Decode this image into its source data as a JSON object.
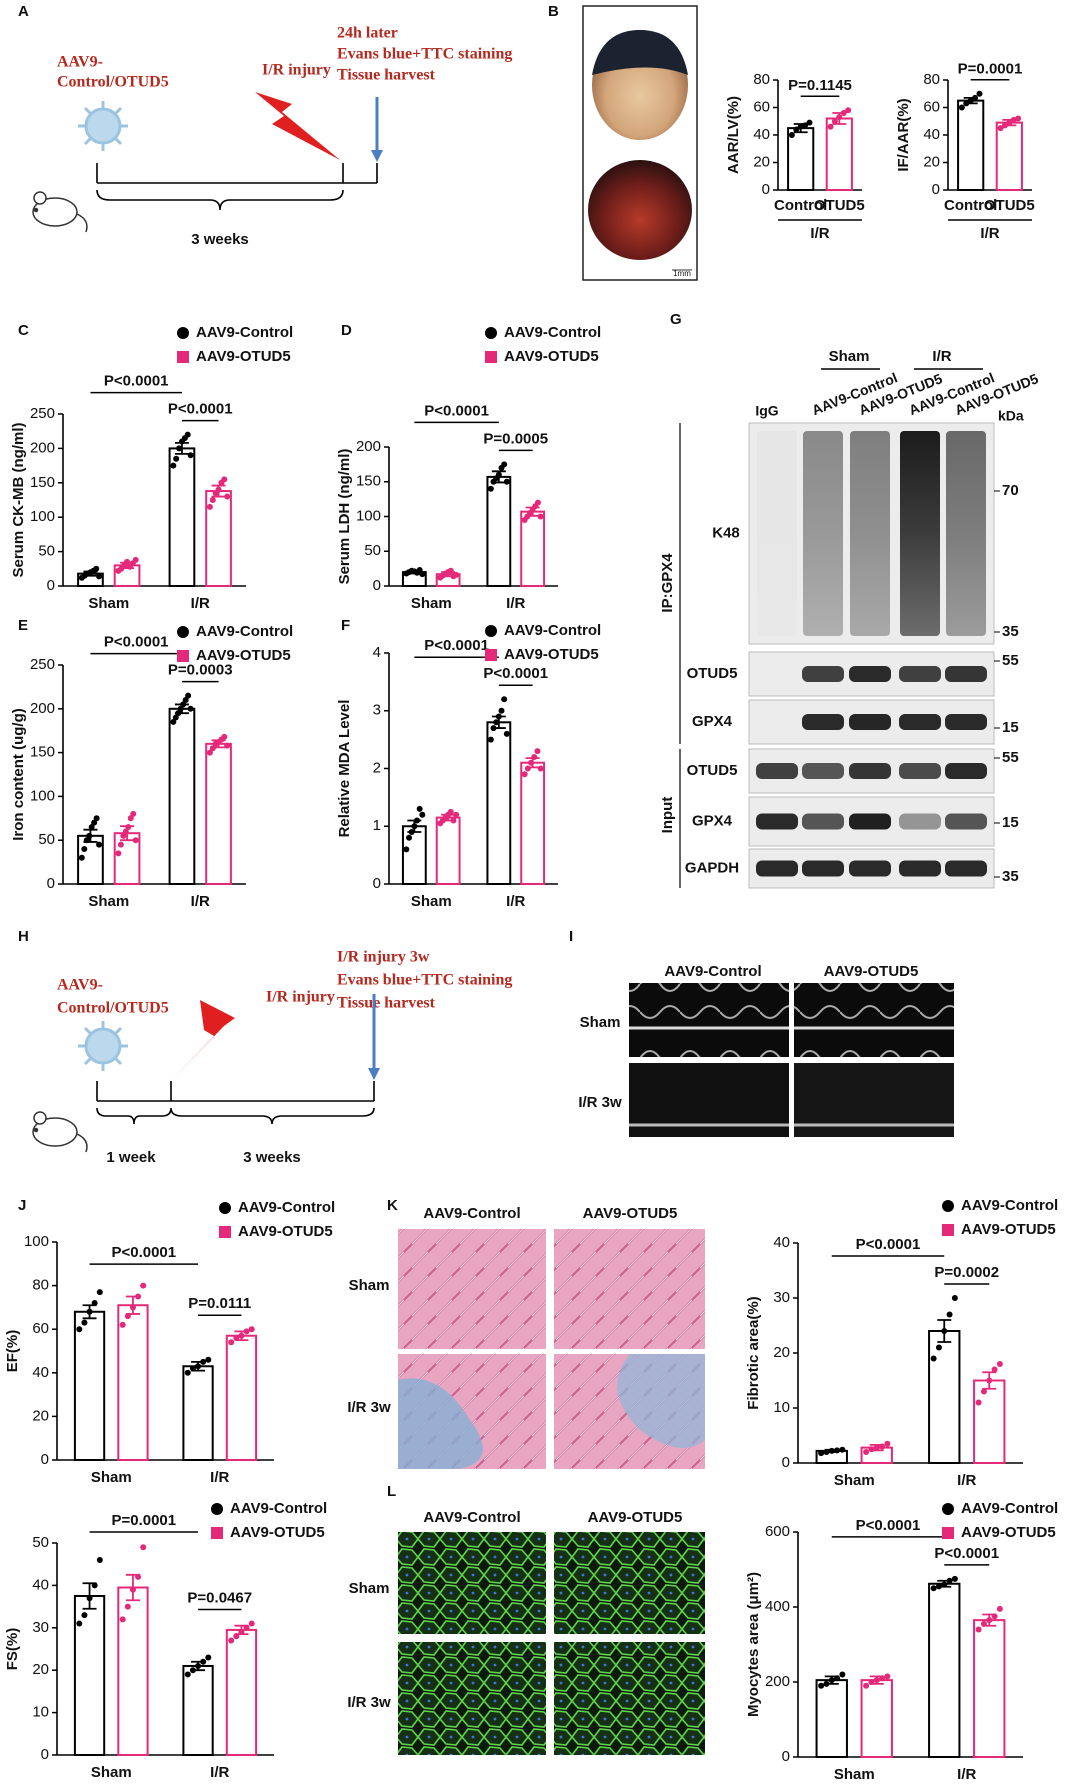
{
  "panel_labels": [
    "A",
    "B",
    "C",
    "D",
    "E",
    "F",
    "G",
    "H",
    "I",
    "J",
    "K",
    "L"
  ],
  "schematic_a": {
    "treatment": [
      "AAV9-",
      "Control/OTUD5"
    ],
    "injury": "I/R injury",
    "endpoint": [
      "24h later",
      "Evans blue+TTC staining",
      "Tissue harvest"
    ],
    "duration": "3 weeks"
  },
  "schematic_h": {
    "treatment": [
      "AAV9-",
      "Control/OTUD5"
    ],
    "injury": "I/R injury",
    "endpoint": [
      "I/R injury 3w",
      "Evans blue+TTC staining",
      "Tissue harvest"
    ],
    "durations": [
      "1 week",
      "3 weeks"
    ]
  },
  "heart_image": {
    "scale": "1mm"
  },
  "echo": {
    "columns": [
      "AAV9-Control",
      "AAV9-OTUD5"
    ],
    "rows": [
      "Sham",
      "I/R 3w"
    ]
  },
  "masson": {
    "columns": [
      "AAV9-Control",
      "AAV9-OTUD5"
    ],
    "rows": [
      "Sham",
      "I/R 3w"
    ]
  },
  "wga": {
    "columns": [
      "AAV9-Control",
      "AAV9-OTUD5"
    ],
    "rows": [
      "Sham",
      "I/R 3w"
    ]
  },
  "blot": {
    "lanes": [
      "IgG",
      "AAV9-Control",
      "AAV9-OTUD5",
      "AAV9-Control",
      "AAV9-OTUD5"
    ],
    "groups": [
      "Sham",
      "I/R"
    ],
    "unit": "kDa",
    "ip_label": "IP:GPX4",
    "input_label": "Input",
    "rows": [
      {
        "label": "K48",
        "markers": [
          70,
          35
        ]
      },
      {
        "label": "OTUD5",
        "markers": [
          55
        ]
      },
      {
        "label": "GPX4",
        "markers": [
          15
        ]
      },
      {
        "label": "OTUD5",
        "markers": [
          55
        ]
      },
      {
        "label": "GPX4",
        "markers": [
          15
        ]
      },
      {
        "label": "GAPDH",
        "markers": [
          35
        ]
      }
    ]
  },
  "chart_data": [
    {
      "type": "bar",
      "ylabel": "AAR/LV(%)",
      "categories": [
        "I/R"
      ],
      "legend": false,
      "ylim": [
        0,
        80
      ],
      "yticks": [
        0,
        20,
        40,
        60,
        80
      ],
      "series": [
        {
          "name": "Control",
          "color": "#000000",
          "values": [
            45
          ],
          "errors": [
            3
          ],
          "points": [
            [
              40,
              44,
              46,
              47,
              49
            ]
          ]
        },
        {
          "name": "OTUD5",
          "color": "#e5297a",
          "values": [
            52
          ],
          "errors": [
            4
          ],
          "points": [
            [
              46,
              50,
              53,
              56,
              58
            ]
          ]
        }
      ],
      "comparisons": [
        "P=0.1145"
      ]
    },
    {
      "type": "bar",
      "ylabel": "IF/AAR(%)",
      "categories": [
        "I/R"
      ],
      "legend": false,
      "ylim": [
        0,
        80
      ],
      "yticks": [
        0,
        20,
        40,
        60,
        80
      ],
      "series": [
        {
          "name": "Control",
          "color": "#000000",
          "values": [
            65
          ],
          "errors": [
            2
          ],
          "points": [
            [
              60,
              63,
              65,
              67,
              70
            ]
          ]
        },
        {
          "name": "OTUD5",
          "color": "#e5297a",
          "values": [
            49
          ],
          "errors": [
            2
          ],
          "points": [
            [
              45,
              47,
              49,
              51,
              52
            ]
          ]
        }
      ],
      "comparisons": [
        "P=0.0001"
      ]
    },
    {
      "type": "bar",
      "ylabel": "Serum CK-MB (ng/ml)",
      "categories": [
        "Sham",
        "I/R"
      ],
      "legend": true,
      "ylim": [
        0,
        250
      ],
      "yticks": [
        0,
        50,
        100,
        150,
        200,
        250
      ],
      "series": [
        {
          "name": "AAV9-Control",
          "color": "#000000",
          "values": [
            18,
            200
          ],
          "errors": [
            3,
            8
          ],
          "points": [
            [
              12,
              15,
              18,
              20,
              22,
              25,
              14
            ],
            [
              175,
              185,
              200,
              210,
              215,
              220,
              190
            ]
          ]
        },
        {
          "name": "AAV9-OTUD5",
          "color": "#e5297a",
          "values": [
            30,
            138
          ],
          "errors": [
            4,
            8
          ],
          "points": [
            [
              22,
              25,
              30,
              35,
              28,
              33,
              38
            ],
            [
              115,
              125,
              135,
              140,
              150,
              155,
              130
            ]
          ]
        }
      ],
      "comparisons": [
        "P<0.0001",
        "P<0.0001"
      ]
    },
    {
      "type": "bar",
      "ylabel": "Serum LDH (ng/ml)",
      "categories": [
        "Sham",
        "I/R"
      ],
      "legend": true,
      "ylim": [
        0,
        200
      ],
      "yticks": [
        0,
        50,
        100,
        150,
        200
      ],
      "series": [
        {
          "name": "AAV9-Control",
          "color": "#000000",
          "values": [
            20,
            157
          ],
          "errors": [
            2,
            8
          ],
          "points": [
            [
              18,
              20,
              22,
              21,
              19,
              23,
              17
            ],
            [
              140,
              150,
              155,
              160,
              170,
              175,
              150
            ]
          ]
        },
        {
          "name": "AAV9-OTUD5",
          "color": "#e5297a",
          "values": [
            17,
            107
          ],
          "errors": [
            3,
            6
          ],
          "points": [
            [
              12,
              15,
              18,
              20,
              22,
              14,
              16
            ],
            [
              95,
              100,
              105,
              110,
              115,
              120,
              100
            ]
          ]
        }
      ],
      "comparisons": [
        "P<0.0001",
        "P=0.0005"
      ]
    },
    {
      "type": "bar",
      "ylabel": "Iron content (ug/g)",
      "categories": [
        "Sham",
        "I/R"
      ],
      "legend": true,
      "ylim": [
        0,
        250
      ],
      "yticks": [
        0,
        50,
        100,
        150,
        200,
        250
      ],
      "series": [
        {
          "name": "AAV9-Control",
          "color": "#000000",
          "values": [
            55,
            200
          ],
          "errors": [
            7,
            5
          ],
          "points": [
            [
              30,
              40,
              50,
              55,
              65,
              70,
              75,
              45
            ],
            [
              185,
              190,
              195,
              200,
              205,
              210,
              215,
              200
            ]
          ]
        },
        {
          "name": "AAV9-OTUD5",
          "color": "#e5297a",
          "values": [
            58,
            160
          ],
          "errors": [
            8,
            4
          ],
          "points": [
            [
              35,
              45,
              55,
              60,
              65,
              75,
              80,
              50
            ],
            [
              150,
              155,
              160,
              162,
              165,
              168,
              158
            ]
          ]
        }
      ],
      "comparisons": [
        "P<0.0001",
        "P=0.0003"
      ]
    },
    {
      "type": "bar",
      "ylabel": "Relative MDA Level",
      "categories": [
        "Sham",
        "I/R"
      ],
      "legend": true,
      "ylim": [
        0,
        4
      ],
      "yticks": [
        0,
        1,
        2,
        3,
        4
      ],
      "series": [
        {
          "name": "AAV9-Control",
          "color": "#000000",
          "values": [
            1.0,
            2.8
          ],
          "errors": [
            0.1,
            0.1
          ],
          "points": [
            [
              0.6,
              0.8,
              0.9,
              1.0,
              1.1,
              1.3,
              1.2
            ],
            [
              2.5,
              2.7,
              2.8,
              2.9,
              3.0,
              3.2,
              2.6
            ]
          ]
        },
        {
          "name": "AAV9-OTUD5",
          "color": "#e5297a",
          "values": [
            1.15,
            2.1
          ],
          "errors": [
            0.05,
            0.08
          ],
          "points": [
            [
              1.05,
              1.1,
              1.15,
              1.2,
              1.25,
              1.1,
              1.2
            ],
            [
              1.9,
              2.0,
              2.1,
              2.2,
              2.3,
              2.0
            ]
          ]
        }
      ],
      "comparisons": [
        "P<0.0001",
        "P<0.0001"
      ]
    },
    {
      "type": "bar",
      "ylabel": "EF(%)",
      "categories": [
        "Sham",
        "I/R"
      ],
      "legend": true,
      "ylim": [
        0,
        100
      ],
      "yticks": [
        0,
        20,
        40,
        60,
        80,
        100
      ],
      "series": [
        {
          "name": "AAV9-Control",
          "color": "#000000",
          "values": [
            68,
            43
          ],
          "errors": [
            3,
            2
          ],
          "points": [
            [
              60,
              63,
              68,
              72,
              77
            ],
            [
              40,
              42,
              43,
              45,
              46
            ]
          ]
        },
        {
          "name": "AAV9-OTUD5",
          "color": "#e5297a",
          "values": [
            71,
            57
          ],
          "errors": [
            4,
            2
          ],
          "points": [
            [
              62,
              66,
              70,
              75,
              80
            ],
            [
              54,
              56,
              57,
              59,
              60
            ]
          ]
        }
      ],
      "comparisons": [
        "P<0.0001",
        "P=0.0111"
      ]
    },
    {
      "type": "bar",
      "ylabel": "FS(%)",
      "categories": [
        "Sham",
        "I/R"
      ],
      "legend": true,
      "ylim": [
        0,
        50
      ],
      "yticks": [
        0,
        10,
        20,
        30,
        40,
        50
      ],
      "series": [
        {
          "name": "AAV9-Control",
          "color": "#000000",
          "values": [
            37.5,
            21
          ],
          "errors": [
            3,
            1
          ],
          "points": [
            [
              31,
              33,
              37,
              40,
              46
            ],
            [
              19,
              20,
              21,
              22,
              23
            ]
          ]
        },
        {
          "name": "AAV9-OTUD5",
          "color": "#e5297a",
          "values": [
            39.5,
            29.5
          ],
          "errors": [
            3,
            1
          ],
          "points": [
            [
              32,
              35,
              39,
              42,
              49
            ],
            [
              27,
              28,
              29,
              30,
              31
            ]
          ]
        }
      ],
      "comparisons": [
        "P=0.0001",
        "P=0.0467"
      ]
    },
    {
      "type": "bar",
      "ylabel": "Fibrotic area(%)",
      "categories": [
        "Sham",
        "I/R"
      ],
      "legend": true,
      "ylim": [
        0,
        40
      ],
      "yticks": [
        0,
        10,
        20,
        30,
        40
      ],
      "series": [
        {
          "name": "AAV9-Control",
          "color": "#000000",
          "values": [
            2.2,
            24
          ],
          "errors": [
            0.2,
            2
          ],
          "points": [
            [
              1.8,
              2.0,
              2.2,
              2.3,
              2.4
            ],
            [
              19,
              21,
              24,
              27,
              30
            ]
          ]
        },
        {
          "name": "AAV9-OTUD5",
          "color": "#e5297a",
          "values": [
            2.8,
            15
          ],
          "errors": [
            0.5,
            1.5
          ],
          "points": [
            [
              2.0,
              2.5,
              2.8,
              3.0,
              3.5
            ],
            [
              11,
              13,
              15,
              17,
              18
            ]
          ]
        }
      ],
      "comparisons": [
        "P<0.0001",
        "P=0.0002"
      ]
    },
    {
      "type": "bar",
      "ylabel": "Myocytes area (μm²)",
      "categories": [
        "Sham",
        "I/R"
      ],
      "legend": true,
      "ylim": [
        0,
        600
      ],
      "yticks": [
        0,
        200,
        400,
        600
      ],
      "series": [
        {
          "name": "AAV9-Control",
          "color": "#000000",
          "values": [
            205,
            462
          ],
          "errors": [
            10,
            8
          ],
          "points": [
            [
              190,
              195,
              205,
              210,
              220
            ],
            [
              450,
              455,
              460,
              470,
              475
            ]
          ]
        },
        {
          "name": "AAV9-OTUD5",
          "color": "#e5297a",
          "values": [
            205,
            365
          ],
          "errors": [
            10,
            15
          ],
          "points": [
            [
              190,
              200,
              205,
              210,
              215
            ],
            [
              340,
              355,
              365,
              375,
              395
            ]
          ]
        }
      ],
      "comparisons": [
        "P<0.0001",
        "P<0.0001"
      ]
    }
  ]
}
